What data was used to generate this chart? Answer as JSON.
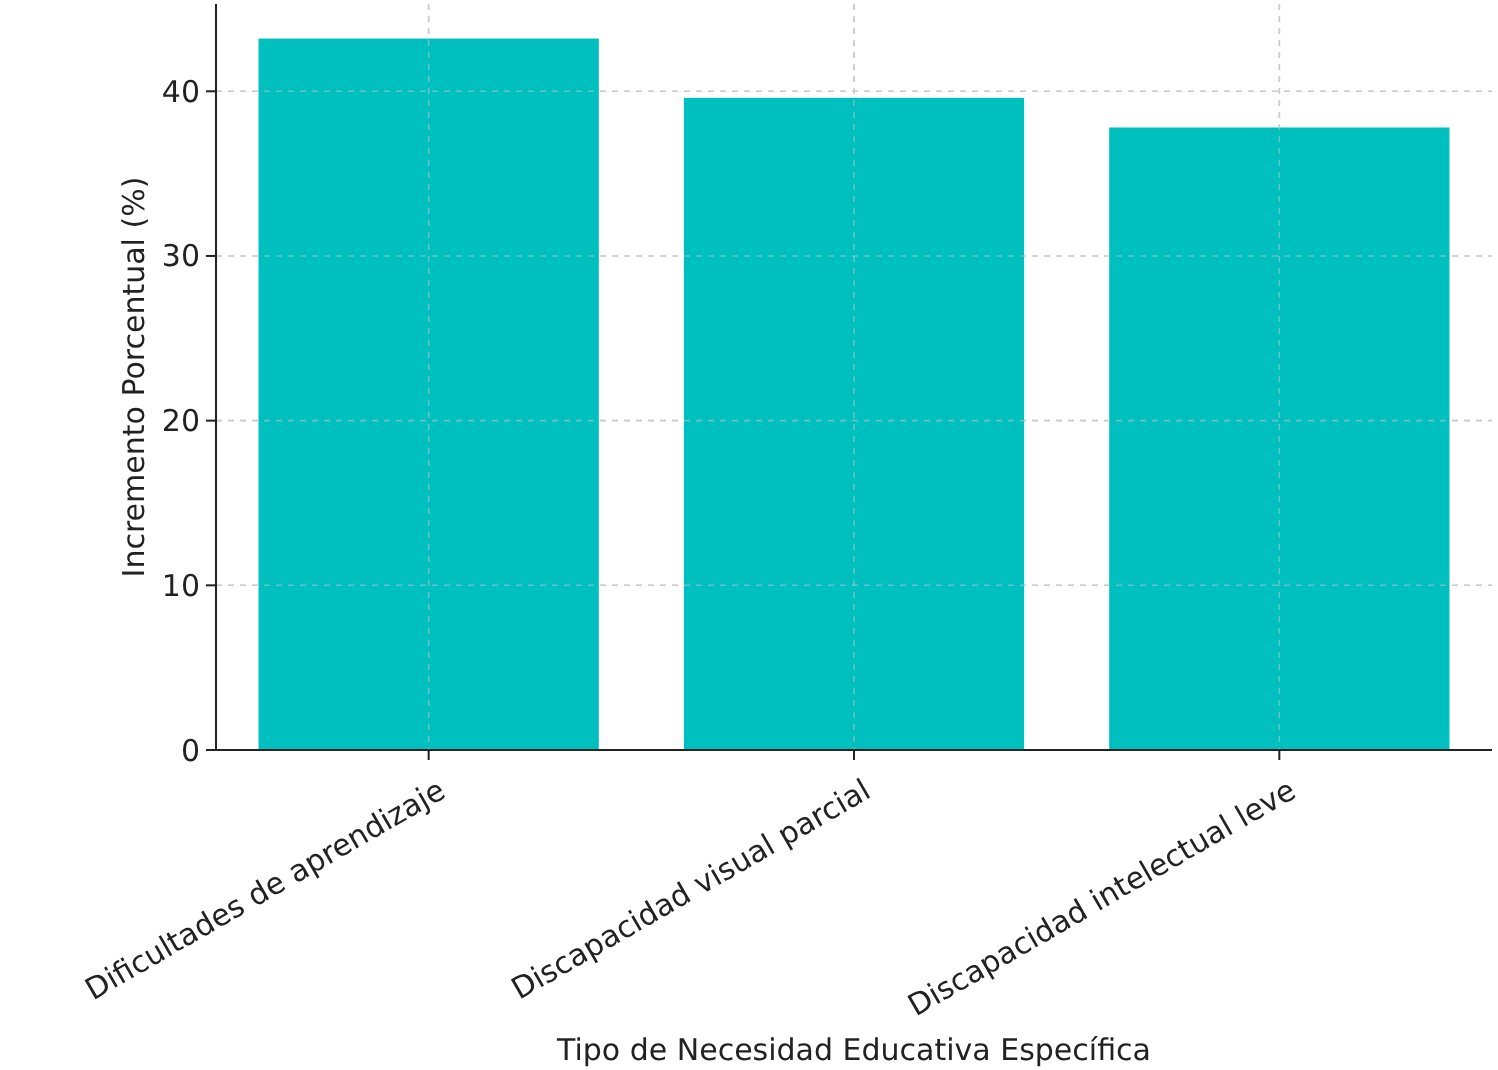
{
  "chart_data": {
    "type": "bar",
    "xlabel": "Tipo de Necesidad Educativa Específica",
    "ylabel": "Incremento Porcentual (%)",
    "categories": [
      "Dificultades de aprendizaje",
      "Discapacidad visual parcial",
      "Discapacidad intelectual leve"
    ],
    "values": [
      43.2,
      39.6,
      37.8
    ],
    "color": "#00bfbf",
    "ylim": [
      0,
      45.3
    ],
    "yticks": [
      0,
      10,
      20,
      30,
      40
    ],
    "grid": true
  }
}
